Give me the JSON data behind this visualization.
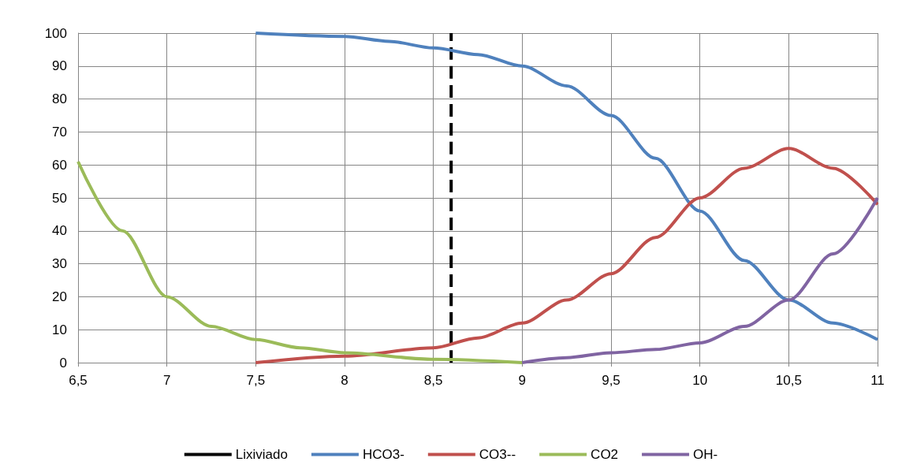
{
  "chart_data": {
    "type": "line",
    "xlim": [
      6.5,
      11
    ],
    "xticks": [
      {
        "value": 6.5,
        "label": "6,5"
      },
      7,
      {
        "value": 7.5,
        "label": "7,5"
      },
      8,
      {
        "value": 8.5,
        "label": "8,5"
      },
      9,
      {
        "value": 9.5,
        "label": "9,5"
      },
      10,
      {
        "value": 10.5,
        "label": "10,5"
      },
      11
    ],
    "ylim": [
      0,
      100
    ],
    "yticks": [
      0,
      10,
      20,
      30,
      40,
      50,
      60,
      70,
      80,
      90,
      100
    ],
    "grid": true,
    "legend": "bottom",
    "marker": "none",
    "series": [
      {
        "name": "Lixiviado",
        "color": "#000000",
        "line_style": "dashed",
        "x": [
          8.6,
          8.6
        ],
        "values": [
          0,
          100
        ]
      },
      {
        "name": "HCO3-",
        "color": "#4f81bd",
        "x": [
          7.5,
          8,
          8.25,
          8.5,
          8.75,
          9,
          9.25,
          9.5,
          9.75,
          10,
          10.25,
          10.5,
          10.75,
          11
        ],
        "values": [
          100,
          99,
          97.5,
          95.5,
          93.5,
          90,
          84,
          75,
          62,
          46,
          31,
          19,
          12,
          7
        ]
      },
      {
        "name": "CO3--",
        "color": "#c0504d",
        "x": [
          7.5,
          8,
          8.5,
          8.75,
          9,
          9.25,
          9.5,
          9.75,
          10,
          10.25,
          10.5,
          10.75,
          11
        ],
        "values": [
          0,
          2,
          4.5,
          7.5,
          12,
          19,
          27,
          38,
          50,
          59,
          65,
          59,
          48
        ]
      },
      {
        "name": "CO2",
        "color": "#9bbb59",
        "x": [
          6.5,
          6.75,
          7,
          7.25,
          7.5,
          7.75,
          8,
          8.5,
          9
        ],
        "values": [
          61,
          40,
          20,
          11,
          7,
          4.5,
          3,
          1,
          0
        ]
      },
      {
        "name": "OH-",
        "color": "#8064a2",
        "x": [
          9,
          9.25,
          9.5,
          9.75,
          10,
          10.25,
          10.5,
          10.75,
          11
        ],
        "values": [
          0,
          1.5,
          3,
          4,
          6,
          11,
          19,
          33,
          50
        ]
      }
    ]
  }
}
